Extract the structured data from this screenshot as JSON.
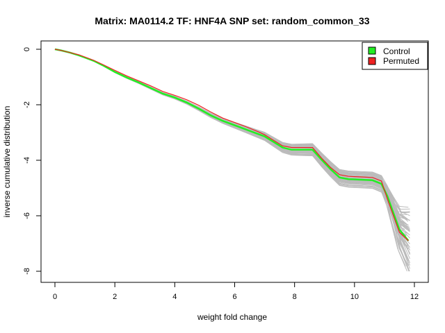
{
  "chart_data": {
    "type": "line",
    "title": "Matrix: MA0114.2 TF: HNF4A SNP set: random_common_33",
    "xlabel": "weight fold change",
    "ylabel": "inverse cumulative distribution",
    "xlim": [
      0,
      12
    ],
    "ylim": [
      -8,
      0
    ],
    "xticks": [
      "0",
      "2",
      "4",
      "6",
      "8",
      "10",
      "12"
    ],
    "yticks": [
      "0",
      "-2",
      "-4",
      "-6",
      "-8"
    ],
    "grid": false,
    "legend_position": "top-right",
    "legend": [
      {
        "label": "Control",
        "color": "#22ee22"
      },
      {
        "label": "Permuted",
        "color": "#ee2222"
      }
    ],
    "background_color": "#bbbbbb",
    "series": [
      {
        "name": "Control",
        "color": "#22ee22",
        "x": [
          0.0,
          0.2,
          0.5,
          0.8,
          1.0,
          1.3,
          1.6,
          2.0,
          2.4,
          2.8,
          3.2,
          3.6,
          4.0,
          4.4,
          4.8,
          5.2,
          5.6,
          6.0,
          6.4,
          6.8,
          7.0,
          7.3,
          7.6,
          7.9,
          8.2,
          8.6,
          8.9,
          9.2,
          9.5,
          9.8,
          10.2,
          10.6,
          10.9,
          11.1,
          11.3,
          11.5,
          11.8
        ],
        "y": [
          0.0,
          -0.04,
          -0.12,
          -0.22,
          -0.3,
          -0.42,
          -0.58,
          -0.82,
          -1.02,
          -1.2,
          -1.4,
          -1.6,
          -1.74,
          -1.92,
          -2.14,
          -2.38,
          -2.58,
          -2.74,
          -2.9,
          -3.06,
          -3.14,
          -3.34,
          -3.54,
          -3.62,
          -3.62,
          -3.62,
          -3.98,
          -4.32,
          -4.62,
          -4.68,
          -4.7,
          -4.72,
          -4.85,
          -5.3,
          -5.9,
          -6.5,
          -6.9
        ]
      },
      {
        "name": "Permuted",
        "color": "#ee2222",
        "x": [
          0.0,
          0.2,
          0.5,
          0.8,
          1.0,
          1.3,
          1.6,
          2.0,
          2.4,
          2.8,
          3.2,
          3.6,
          4.0,
          4.4,
          4.8,
          5.2,
          5.6,
          6.0,
          6.4,
          6.8,
          7.0,
          7.3,
          7.6,
          7.9,
          8.2,
          8.6,
          8.9,
          9.2,
          9.5,
          9.8,
          10.2,
          10.6,
          10.9,
          11.1,
          11.3,
          11.5,
          11.8
        ],
        "y": [
          0.0,
          -0.04,
          -0.12,
          -0.2,
          -0.28,
          -0.4,
          -0.55,
          -0.76,
          -0.96,
          -1.14,
          -1.32,
          -1.52,
          -1.66,
          -1.82,
          -2.02,
          -2.26,
          -2.48,
          -2.64,
          -2.8,
          -2.98,
          -3.08,
          -3.28,
          -3.48,
          -3.54,
          -3.54,
          -3.54,
          -3.92,
          -4.26,
          -4.52,
          -4.58,
          -4.6,
          -4.62,
          -4.75,
          -5.4,
          -6.0,
          -6.6,
          -6.9
        ]
      }
    ]
  }
}
